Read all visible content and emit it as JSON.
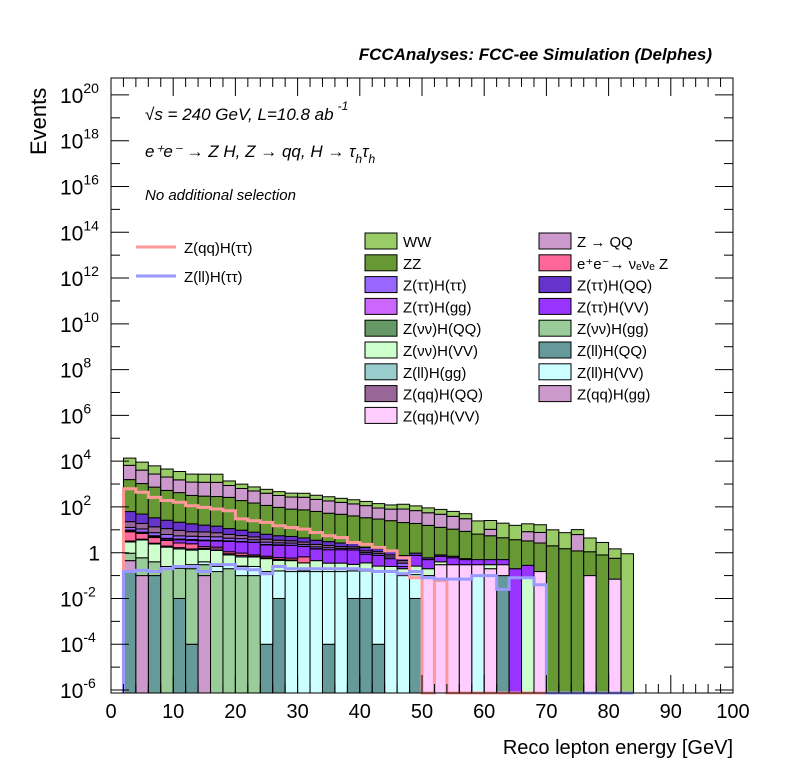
{
  "chart_data": {
    "type": "bar",
    "subtype": "stacked-histogram-log",
    "title": "FCCAnalyses: FCC-ee Simulation (Delphes)",
    "xlabel": "Reco lepton energy [GeV]",
    "ylabel": "Events",
    "xlim": [
      0,
      100
    ],
    "ylim_log10": [
      -6.13,
      20.74
    ],
    "yscale": "log",
    "x_ticks": [
      "0",
      "10",
      "20",
      "30",
      "40",
      "50",
      "60",
      "70",
      "80",
      "90",
      "100"
    ],
    "y_ticks": [
      {
        "base": "10",
        "exp": "20"
      },
      {
        "base": "10",
        "exp": "18"
      },
      {
        "base": "10",
        "exp": "16"
      },
      {
        "base": "10",
        "exp": "14"
      },
      {
        "base": "10",
        "exp": "12"
      },
      {
        "base": "10",
        "exp": "10"
      },
      {
        "base": "10",
        "exp": "8"
      },
      {
        "base": "10",
        "exp": "6"
      },
      {
        "base": "10",
        "exp": "4"
      },
      {
        "base": "10",
        "exp": "2"
      },
      {
        "base": "1",
        "exp": ""
      },
      {
        "base": "10",
        "exp": "-2"
      },
      {
        "base": "10",
        "exp": "-4"
      },
      {
        "base": "10",
        "exp": "-6"
      }
    ],
    "annotations": {
      "energy_lumi": "√s = 240 GeV, L=10.8 ab",
      "lumi_exp": "-1",
      "process": "e⁺e⁻ → Z H, Z → qq, H → τ",
      "process_sub1": "h",
      "process_tau2": "τ",
      "process_sub2": "h",
      "selection": "No additional selection"
    },
    "bin_start": 2,
    "bin_width": 2,
    "n_bins": 41,
    "stack": [
      {
        "name": "Z(ll)H(QQ)",
        "color": "#669999",
        "values": [
          0.15,
          0,
          0.1,
          0,
          0.01,
          0.0001,
          0,
          0,
          0,
          0,
          0,
          0.0001,
          0.01,
          0,
          0,
          0,
          0.0001,
          0,
          0.01,
          0.01,
          0.0001,
          0,
          0,
          0.01,
          0,
          0,
          0,
          0,
          0,
          0,
          0.1,
          0,
          0,
          0,
          0,
          0,
          0,
          0,
          0,
          0,
          0
        ]
      },
      {
        "name": "Z(qq)H(gg)",
        "color": "#cc99cc",
        "values": [
          0.3,
          0.1,
          0,
          0,
          0,
          0,
          0.1,
          0,
          0,
          0,
          0,
          0,
          0,
          0,
          0,
          0,
          0,
          0,
          0,
          0,
          0,
          0,
          0,
          0,
          0,
          0,
          0,
          0,
          0,
          0,
          0,
          0,
          0,
          0,
          0,
          0,
          0,
          0,
          0,
          0,
          0
        ]
      },
      {
        "name": "Z(νν)H(gg)",
        "color": "#99cc99",
        "values": [
          0.5,
          0.5,
          0.3,
          0.2,
          0.2,
          0.2,
          0.2,
          0.15,
          0.2,
          0.1,
          0.1,
          0,
          0,
          0,
          0,
          0,
          0,
          0,
          0,
          0,
          0,
          0,
          0,
          0,
          0,
          0,
          0,
          0,
          0,
          0,
          0,
          0,
          0,
          0,
          0,
          0,
          0,
          0,
          0,
          0,
          0
        ]
      },
      {
        "name": "Z(ll)H(VV)",
        "color": "#ccffff",
        "values": [
          0,
          0,
          0,
          0.05,
          0.05,
          0.1,
          0.1,
          0.1,
          0.1,
          0.15,
          0.15,
          0.15,
          0.15,
          0.15,
          0.15,
          0.15,
          0.15,
          0.15,
          0.15,
          0.15,
          0.15,
          0.15,
          0.1,
          0.1,
          0,
          0,
          0,
          0,
          0.1,
          0,
          0,
          0,
          0,
          0,
          0,
          0,
          0,
          0,
          0,
          0,
          0
        ]
      },
      {
        "name": "Z(ll)H(gg)",
        "color": "#99cccc",
        "values": [
          0,
          0,
          0,
          0,
          0,
          0,
          0,
          0,
          0,
          0.01,
          0,
          0,
          0,
          0,
          0.01,
          0,
          0,
          0,
          0,
          0,
          0.01,
          0,
          0,
          0,
          0,
          0,
          0,
          0,
          0,
          0,
          0,
          0,
          0,
          0,
          0,
          0,
          0,
          0,
          0,
          0,
          0
        ]
      },
      {
        "name": "Z(qq)H(VV)",
        "color": "#ffccff",
        "values": [
          0,
          0,
          0,
          0,
          0,
          0,
          0,
          0,
          0,
          0,
          0,
          0,
          0,
          0,
          0,
          0,
          0,
          0,
          0,
          0,
          0,
          0,
          0,
          0,
          0.1,
          0.3,
          0.3,
          0.3,
          0.2,
          0.2,
          0.2,
          0,
          0,
          0.15,
          0,
          0,
          0,
          0.1,
          0,
          0.07,
          0
        ]
      },
      {
        "name": "Z(νν)H(VV)",
        "color": "#ccffcc",
        "values": [
          2,
          3,
          2,
          1.5,
          1.2,
          1,
          1,
          1,
          0.5,
          0.4,
          0.4,
          0.4,
          0.3,
          0.3,
          0.2,
          0.3,
          0.2,
          0.2,
          0.15,
          0.2,
          0.1,
          0.1,
          0.1,
          0.15,
          0.1,
          0.1,
          0,
          0,
          0,
          0.1,
          0,
          0,
          0.08,
          0,
          0,
          0,
          0,
          0,
          0,
          0,
          0
        ]
      },
      {
        "name": "Z(ττ)H(gg)",
        "color": "#cc66ff",
        "values": [
          0.3,
          0.3,
          0.2,
          0.2,
          0.2,
          0.15,
          0.15,
          0.2,
          0.1,
          0.1,
          0.05,
          0.05,
          0.05,
          0.03,
          0,
          0,
          0,
          0,
          0,
          0,
          0,
          0,
          0,
          0,
          0,
          0,
          0,
          0,
          0,
          0,
          0,
          0,
          0,
          0,
          0,
          0,
          0,
          0,
          0,
          0,
          0
        ]
      },
      {
        "name": "e⁺e⁻→ νₑνₑ Z",
        "color": "#ff6699",
        "values": [
          5,
          3,
          2,
          1.5,
          1,
          1,
          0.3,
          0.3,
          0.2,
          0.2,
          0.1,
          0.1,
          0.1,
          0.1,
          0.3,
          0,
          0,
          0,
          0,
          0,
          0,
          0,
          0,
          0,
          0,
          0,
          0,
          0,
          0,
          0,
          0,
          0,
          0,
          0,
          0,
          0,
          0,
          0,
          0,
          0,
          0
        ]
      },
      {
        "name": "Z(ττ)H(VV)",
        "color": "#9933ff",
        "values": [
          0.5,
          0.5,
          0.5,
          0.5,
          1,
          1,
          1.5,
          1.5,
          2,
          2,
          2,
          1.5,
          1.5,
          1.5,
          1.2,
          1,
          1,
          1,
          1,
          0.5,
          0.5,
          0.3,
          0.05,
          0.5,
          0.3,
          0.3,
          0.3,
          0.2,
          0.2,
          0.2,
          0.2,
          0.2,
          0.2,
          0,
          0,
          0,
          0,
          0,
          0,
          0,
          0
        ]
      },
      {
        "name": "Z(νν)H(QQ)",
        "color": "#669966",
        "values": [
          1,
          0.5,
          0.4,
          0.3,
          0.3,
          0.3,
          0.2,
          0.2,
          0.2,
          0.15,
          0.1,
          0.1,
          0.1,
          0.05,
          0.05,
          0.05,
          0,
          0,
          0,
          0,
          0,
          0,
          0,
          0,
          0,
          0,
          0,
          0,
          0,
          0,
          0,
          0,
          0,
          0,
          0,
          0,
          0,
          0,
          0,
          0,
          0
        ]
      },
      {
        "name": "Z(ττ)H(ττ)",
        "color": "#9966ff",
        "values": [
          3,
          3,
          2,
          2,
          1.5,
          1.5,
          1.5,
          1.5,
          1,
          1,
          0.8,
          0.6,
          0.5,
          0.5,
          0.4,
          0.3,
          0.3,
          0.2,
          0.2,
          0.15,
          0.15,
          0.1,
          0.1,
          0,
          0,
          0,
          0,
          0,
          0,
          0,
          0,
          0,
          0,
          0,
          0,
          0,
          0,
          0,
          0,
          0,
          0
        ]
      },
      {
        "name": "Z(qq)H(QQ)",
        "color": "#996699",
        "values": [
          10,
          8,
          6,
          5,
          4,
          3,
          3,
          2.5,
          2,
          1.5,
          1.2,
          1,
          0.8,
          0.7,
          0.6,
          0.5,
          0.4,
          0.3,
          0.3,
          0.2,
          0.2,
          0.15,
          0.1,
          0,
          0,
          0,
          0,
          0,
          0,
          0,
          0,
          0,
          0,
          0,
          0,
          0,
          0,
          0,
          0,
          0,
          0
        ]
      },
      {
        "name": "Z(ττ)H(QQ)",
        "color": "#6633cc",
        "values": [
          40,
          30,
          20,
          15,
          12,
          10,
          8,
          7,
          5,
          4,
          3,
          2.5,
          2,
          1.8,
          1.5,
          1.2,
          1,
          0.8,
          0.7,
          0.5,
          0.4,
          0.3,
          0.3,
          0.2,
          0.1,
          0.1,
          0.1,
          0.05,
          0,
          0,
          0,
          0,
          0,
          0,
          0,
          0,
          0,
          0,
          0,
          0,
          0
        ]
      },
      {
        "name": "ZZ",
        "color": "#669933",
        "values": [
          1500,
          1000,
          700,
          500,
          400,
          300,
          280,
          270,
          250,
          180,
          140,
          110,
          90,
          75,
          70,
          60,
          50,
          45,
          38,
          32,
          28,
          24,
          20,
          18,
          15,
          12,
          10,
          8,
          6,
          5,
          4,
          3.5,
          3,
          2.5,
          2,
          1.5,
          1.2,
          1,
          0.8,
          0.5,
          0
        ]
      },
      {
        "name": "Z → QQ",
        "color": "#cc99cc",
        "values": [
          5000,
          3000,
          2000,
          1500,
          1100,
          900,
          900,
          900,
          600,
          450,
          350,
          280,
          220,
          190,
          190,
          150,
          130,
          110,
          95,
          80,
          60,
          55,
          60,
          50,
          40,
          35,
          28,
          22,
          0,
          5,
          0,
          0,
          5,
          5,
          0,
          0,
          5,
          0,
          0,
          0,
          0
        ]
      },
      {
        "name": "WW",
        "color": "#99cc66",
        "values": [
          7000,
          5000,
          3500,
          2500,
          2000,
          1500,
          1500,
          1500,
          500,
          350,
          250,
          190,
          150,
          130,
          130,
          110,
          95,
          80,
          70,
          60,
          50,
          42,
          50,
          42,
          35,
          30,
          25,
          20,
          18,
          15,
          15,
          12,
          10,
          9,
          8,
          6,
          4,
          3.3,
          2,
          0.9,
          0.9
        ]
      }
    ],
    "signals": [
      {
        "name": "Z(qq)H(ττ)",
        "color": "#ff9999",
        "values": [
          620,
          440,
          260,
          190,
          160,
          112,
          95,
          81,
          68,
          30,
          25,
          21,
          15,
          12.6,
          10.7,
          7.6,
          5.5,
          4.6,
          2.8,
          2.3,
          1.7,
          1.2,
          0.6,
          0.08,
          0,
          0.06,
          0,
          0,
          0,
          0,
          0,
          0,
          0,
          0,
          0,
          0,
          0,
          0,
          0,
          0,
          0
        ]
      },
      {
        "name": "Z(ll)H(ττ)",
        "color": "#9999ff",
        "values": [
          0.15,
          0.17,
          0.15,
          0.2,
          0.25,
          0.25,
          0.15,
          0.3,
          0.3,
          0.2,
          0.18,
          0.12,
          0.25,
          0.2,
          0.2,
          0.2,
          0.2,
          0.2,
          0.2,
          0.18,
          0.15,
          0.15,
          0.12,
          0.15,
          0.08,
          0.07,
          0.07,
          0.07,
          0.1,
          0.1,
          0.025,
          0.08,
          0.08,
          0.04,
          0,
          0,
          0,
          0,
          0,
          0,
          0
        ]
      }
    ],
    "legend_signals": [
      "Z(qq)H(ττ)",
      "Z(ll)H(ττ)"
    ],
    "legend_backgrounds": [
      {
        "label": "WW",
        "color": "#99cc66"
      },
      {
        "label": "Z → QQ",
        "color": "#cc99cc"
      },
      {
        "label": "ZZ",
        "color": "#669933"
      },
      {
        "label": "e⁺e⁻→ νₑνₑ Z",
        "color": "#ff6699"
      },
      {
        "label": "Z(ττ)H(ττ)",
        "color": "#9966ff"
      },
      {
        "label": "Z(ττ)H(QQ)",
        "color": "#6633cc"
      },
      {
        "label": "Z(ττ)H(gg)",
        "color": "#cc66ff"
      },
      {
        "label": "Z(ττ)H(VV)",
        "color": "#9933ff"
      },
      {
        "label": "Z(νν)H(QQ)",
        "color": "#669966"
      },
      {
        "label": "Z(νν)H(gg)",
        "color": "#99cc99"
      },
      {
        "label": "Z(νν)H(VV)",
        "color": "#ccffcc"
      },
      {
        "label": "Z(ll)H(QQ)",
        "color": "#669999"
      },
      {
        "label": "Z(ll)H(gg)",
        "color": "#99cccc"
      },
      {
        "label": "Z(ll)H(VV)",
        "color": "#ccffff"
      },
      {
        "label": "Z(qq)H(QQ)",
        "color": "#996699"
      },
      {
        "label": "Z(qq)H(gg)",
        "color": "#cc99cc"
      },
      {
        "label": "Z(qq)H(VV)",
        "color": "#ffccff"
      }
    ],
    "legend_placement": "top-right",
    "grid": false
  }
}
